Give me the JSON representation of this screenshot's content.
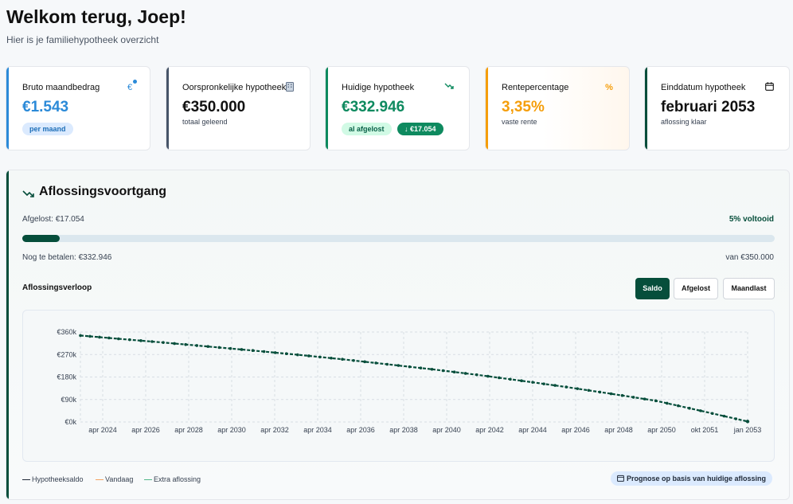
{
  "header": {
    "title": "Welkom terug, Joep!",
    "subtitle": "Hier is je familiehypotheek overzicht"
  },
  "cards": {
    "bruto": {
      "label": "Bruto maandbedrag",
      "value": "€1.543",
      "pill": "per maand",
      "icon": "euro-icon",
      "color": "#2b8ad8"
    },
    "origineel": {
      "label": "Oorspronkelijke hypotheek",
      "value": "€350.000",
      "sub": "totaal geleend",
      "icon": "building-icon",
      "color": "#475569"
    },
    "huidig": {
      "label": "Huidige hypotheek",
      "value": "€332.946",
      "pill": "al afgelost",
      "badge": "↓ €17.054",
      "icon": "trend-down-icon",
      "color": "#0e8a5f"
    },
    "rente": {
      "label": "Rentepercentage",
      "value": "3,35%",
      "sub": "vaste rente",
      "icon": "percent-icon",
      "color": "#f59e0b"
    },
    "einddatum": {
      "label": "Einddatum hypotheek",
      "value": "februari 2053",
      "sub": "aflossing klaar",
      "icon": "calendar-icon",
      "color": "#064e3b"
    }
  },
  "progress": {
    "title": "Aflossingsvoortgang",
    "paid_label": "Afgelost: €17.054",
    "percent_label": "5% voltooid",
    "fraction": 0.05,
    "remaining_label": "Nog te betalen: €332.946",
    "total_label": "van €350.000"
  },
  "chart_section": {
    "title": "Aflossingsverloop",
    "buttons": [
      "Saldo",
      "Afgelost",
      "Maandlast"
    ],
    "active": "Saldo"
  },
  "chart_data": {
    "type": "line",
    "title": "Aflossingsverloop",
    "xlabel": "",
    "ylabel": "",
    "ylim": [
      0,
      360000
    ],
    "y_ticks": [
      "€0k",
      "€90k",
      "€180k",
      "€270k",
      "€360k"
    ],
    "x_ticks": [
      "apr 2024",
      "apr 2026",
      "apr 2028",
      "apr 2030",
      "apr 2032",
      "apr 2034",
      "apr 2036",
      "apr 2038",
      "apr 2040",
      "apr 2042",
      "apr 2044",
      "apr 2046",
      "apr 2048",
      "apr 2050",
      "okt 2051",
      "jan 2053"
    ],
    "series": [
      {
        "name": "Hypotheeksaldo",
        "color": "#064e3b",
        "x": [
          2023.3,
          2025,
          2027,
          2029,
          2031,
          2033,
          2035,
          2037,
          2039,
          2041,
          2043,
          2045,
          2047,
          2049,
          2051,
          2053.1
        ],
        "values": [
          346000,
          332946,
          318000,
          302000,
          286000,
          269000,
          251000,
          231000,
          211000,
          189000,
          165000,
          140000,
          113000,
          85000,
          45000,
          2000
        ]
      }
    ],
    "legend": [
      "Hypotheeksaldo",
      "Vandaag",
      "Extra aflossing"
    ],
    "legend_colors": [
      "#1f2937",
      "#f4a261",
      "#52b788"
    ]
  },
  "forecast_badge": "Prognose op basis van huidige aflossing"
}
